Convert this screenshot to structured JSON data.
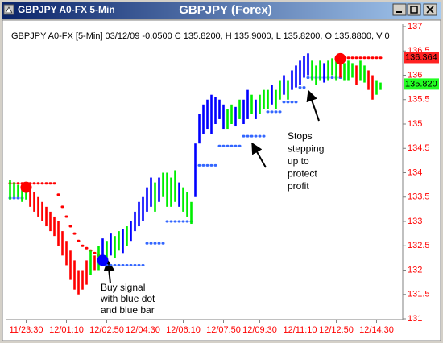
{
  "chart_data": {
    "type": "ohlc",
    "window_title": "GBPJPY A0-FX 5-Min",
    "title": "GBPJPY (Forex)",
    "subtitle": "GBPJPY A0-FX [5-Min] 03/12/09  -0.0500 C 135.8200, H 135.9000, L 135.8200, O 135.8800, V 0",
    "axis_color": "#ff0000",
    "categories": [
      null,
      null,
      null,
      null,
      "11/23:30",
      null,
      null,
      null,
      null,
      null,
      null,
      null,
      null,
      null,
      "12/01:10",
      null,
      null,
      null,
      null,
      null,
      null,
      null,
      null,
      null,
      "12/02:50",
      null,
      null,
      null,
      null,
      null,
      null,
      null,
      null,
      "12/04:30",
      null,
      null,
      null,
      null,
      null,
      null,
      null,
      null,
      null,
      "12/06:10",
      null,
      null,
      null,
      null,
      null,
      null,
      null,
      null,
      null,
      "12/07:50",
      null,
      null,
      null,
      null,
      null,
      null,
      null,
      null,
      "12/09:30",
      null,
      null,
      null,
      null,
      null,
      null,
      null,
      null,
      null,
      "12/11:10",
      null,
      null,
      null,
      null,
      null,
      null,
      null,
      null,
      "12/12:50",
      null,
      null,
      null,
      null,
      null,
      null,
      null,
      null,
      null,
      "12/14:30",
      null
    ],
    "lows": [
      133.45,
      133.5,
      133.5,
      133.4,
      133.45,
      133.3,
      133.2,
      133.1,
      133.0,
      132.9,
      132.8,
      132.7,
      132.5,
      132.3,
      132.1,
      131.8,
      131.6,
      131.5,
      131.6,
      131.7,
      131.9,
      132.0,
      132.0,
      132.15,
      132.2,
      132.3,
      132.25,
      132.4,
      132.35,
      132.5,
      132.6,
      132.8,
      132.9,
      133.0,
      133.2,
      133.3,
      133.2,
      133.4,
      133.5,
      133.3,
      133.3,
      133.4,
      133.3,
      133.2,
      133.1,
      132.95,
      133.5,
      134.6,
      134.8,
      134.9,
      134.8,
      135.0,
      135.1,
      134.9,
      134.9,
      135.0,
      134.95,
      135.1,
      135.0,
      135.1,
      135.2,
      135.1,
      135.2,
      135.3,
      135.3,
      135.4,
      135.3,
      135.5,
      135.6,
      135.5,
      135.7,
      135.75,
      135.8,
      135.95,
      136.0,
      135.9,
      135.8,
      135.9,
      135.85,
      135.9,
      136.0,
      135.9,
      135.95,
      135.9,
      135.9,
      135.95,
      135.8,
      135.9,
      135.85,
      135.7,
      135.5,
      135.6,
      135.7
    ],
    "highs": [
      133.85,
      133.8,
      133.75,
      133.75,
      133.8,
      133.7,
      133.6,
      133.5,
      133.4,
      133.3,
      133.2,
      133.1,
      133.0,
      132.8,
      132.6,
      132.4,
      132.2,
      132.0,
      132.0,
      132.2,
      132.4,
      132.3,
      132.5,
      132.65,
      132.6,
      132.75,
      132.7,
      132.8,
      132.85,
      132.9,
      133.0,
      133.2,
      133.4,
      133.5,
      133.7,
      133.9,
      133.8,
      133.9,
      134.0,
      134.0,
      133.9,
      134.05,
      133.8,
      133.7,
      133.6,
      133.4,
      134.6,
      135.2,
      135.4,
      135.5,
      135.6,
      135.55,
      135.5,
      135.4,
      135.3,
      135.4,
      135.35,
      135.5,
      135.5,
      135.7,
      135.6,
      135.5,
      135.6,
      135.7,
      135.7,
      135.8,
      135.7,
      135.9,
      136.0,
      135.9,
      136.1,
      136.2,
      136.3,
      136.4,
      136.45,
      136.3,
      136.2,
      136.3,
      136.25,
      136.3,
      136.35,
      136.4,
      136.3,
      136.25,
      136.3,
      136.25,
      136.2,
      136.3,
      136.2,
      136.1,
      136.0,
      135.9,
      135.85
    ],
    "bar_colors": [
      "#0e0",
      "#0e0",
      "#0e0",
      "#0e0",
      "#0e0",
      "#f00",
      "#f00",
      "#f00",
      "#f00",
      "#f00",
      "#f00",
      "#f00",
      "#f00",
      "#f00",
      "#f00",
      "#f00",
      "#f00",
      "#f00",
      "#f00",
      "#f00",
      "#0e0",
      "#f00",
      "#0e0",
      "#00f",
      "#0e0",
      "#00f",
      "#0e0",
      "#0e0",
      "#00f",
      "#0e0",
      "#00f",
      "#00f",
      "#00f",
      "#00f",
      "#00f",
      "#00f",
      "#0e0",
      "#00f",
      "#0e0",
      "#0e0",
      "#0e0",
      "#0e0",
      "#00f",
      "#0e0",
      "#0e0",
      "#0e0",
      "#00f",
      "#00f",
      "#00f",
      "#00f",
      "#00f",
      "#00f",
      "#00f",
      "#00f",
      "#0e0",
      "#0e0",
      "#00f",
      "#0e0",
      "#00f",
      "#00f",
      "#0e0",
      "#00f",
      "#0e0",
      "#0e0",
      "#0e0",
      "#00f",
      "#0e0",
      "#0e0",
      "#00f",
      "#0e0",
      "#00f",
      "#00f",
      "#00f",
      "#00f",
      "#00f",
      "#0e0",
      "#0e0",
      "#0e0",
      "#00f",
      "#0e0",
      "#0e0",
      "#0e0",
      "#f00",
      "#0e0",
      "#0e0",
      "#0e0",
      "#f00",
      "#0e0",
      "#0e0",
      "#f00",
      "#f00",
      "#0e0",
      "#0e0"
    ],
    "series": [
      {
        "color": "#ff0000",
        "style": "stop",
        "values": [
          133.78,
          133.78,
          133.78,
          133.78,
          133.78,
          133.78,
          133.78,
          133.78,
          133.78,
          133.78,
          133.78,
          133.78,
          133.55,
          133.3,
          133.1,
          132.9,
          132.75,
          132.6,
          132.5,
          132.45,
          132.4,
          132.35,
          132.3,
          null,
          null,
          null,
          null,
          null,
          null,
          null,
          null,
          null,
          null,
          null,
          null,
          null,
          null,
          null,
          null,
          null,
          null,
          null,
          null,
          null,
          null,
          null,
          null,
          null,
          null,
          null,
          null,
          null,
          null,
          null,
          null,
          null,
          null,
          null,
          null,
          null,
          null,
          null,
          null,
          null,
          null,
          null,
          null,
          null,
          null,
          null,
          null,
          null,
          null,
          null,
          null,
          null,
          null,
          null,
          null,
          null,
          null,
          null,
          null,
          136.36,
          136.36,
          136.36,
          136.36,
          136.36,
          136.36,
          136.36,
          136.36,
          136.36,
          136.36
        ]
      },
      {
        "color": "#3366ff",
        "style": "stop",
        "values": [
          133.48,
          133.48,
          133.48,
          133.48,
          null,
          null,
          null,
          null,
          null,
          null,
          null,
          null,
          null,
          null,
          null,
          null,
          null,
          null,
          null,
          null,
          null,
          null,
          null,
          null,
          132.1,
          132.1,
          132.1,
          132.1,
          132.1,
          132.1,
          132.1,
          132.1,
          132.1,
          132.1,
          132.55,
          132.55,
          132.55,
          132.55,
          132.55,
          133.0,
          133.0,
          133.0,
          133.0,
          133.0,
          133.0,
          133.0,
          null,
          134.15,
          134.15,
          134.15,
          134.15,
          134.15,
          134.55,
          134.55,
          134.55,
          134.55,
          134.55,
          134.55,
          134.75,
          134.75,
          134.75,
          134.75,
          134.75,
          134.75,
          135.25,
          135.25,
          135.25,
          135.25,
          135.45,
          135.45,
          135.45,
          135.45,
          135.75,
          135.75,
          135.95,
          135.95,
          135.95,
          135.95,
          135.95,
          135.95,
          135.95,
          135.95,
          135.95,
          null,
          null,
          null,
          null,
          null,
          null,
          null,
          null,
          null,
          null
        ]
      },
      {
        "color": "#ff0000",
        "style": "signal",
        "values": [
          null,
          null,
          null,
          null,
          133.7,
          null,
          null,
          null,
          null,
          null,
          null,
          null,
          null,
          null,
          null,
          null,
          null,
          null,
          null,
          null,
          null,
          null,
          null,
          null,
          null,
          null,
          null,
          null,
          null,
          null,
          null,
          null,
          null,
          null,
          null,
          null,
          null,
          null,
          null,
          null,
          null,
          null,
          null,
          null,
          null,
          null,
          null,
          null,
          null,
          null,
          null,
          null,
          null,
          null,
          null,
          null,
          null,
          null,
          null,
          null,
          null,
          null,
          null,
          null,
          null,
          null,
          null,
          null,
          null,
          null,
          null,
          null,
          null,
          null,
          null,
          null,
          null,
          null,
          null,
          null,
          null,
          null,
          136.34,
          null,
          null,
          null,
          null,
          null,
          null,
          null,
          null,
          null,
          null
        ]
      },
      {
        "color": "#0000ff",
        "style": "signal",
        "values": [
          null,
          null,
          null,
          null,
          null,
          null,
          null,
          null,
          null,
          null,
          null,
          null,
          null,
          null,
          null,
          null,
          null,
          null,
          null,
          null,
          null,
          null,
          null,
          132.2,
          null,
          null,
          null,
          null,
          null,
          null,
          null,
          null,
          null,
          null,
          null,
          null,
          null,
          null,
          null,
          null,
          null,
          null,
          null,
          null,
          null,
          null,
          null,
          null,
          null,
          null,
          null,
          null,
          null,
          null,
          null,
          null,
          null,
          null,
          null,
          null,
          null,
          null,
          null,
          null,
          null,
          null,
          null,
          null,
          null,
          null,
          null,
          null,
          null,
          null,
          null,
          null,
          null,
          null,
          null,
          null,
          null,
          null,
          null,
          null,
          null,
          null,
          null,
          null,
          null,
          null,
          null,
          null,
          null
        ]
      }
    ],
    "ylim": [
      131,
      137
    ],
    "yticks": [
      131,
      131.5,
      132,
      132.5,
      133,
      133.5,
      134,
      134.5,
      135,
      135.5,
      136,
      136.5,
      137
    ],
    "price_tags": {
      "values": [
        136.364,
        135.82
      ],
      "value_labels": [
        "136.364",
        "135.820"
      ],
      "colors": [
        "#ff2222",
        "#22ff22"
      ]
    },
    "annotations": [
      {
        "lines": [
          "Buy signal",
          "with blue dot",
          "and blue bar"
        ]
      },
      {
        "lines": [
          "Stops",
          "stepping",
          "up to",
          "protect",
          "profit"
        ]
      }
    ]
  }
}
